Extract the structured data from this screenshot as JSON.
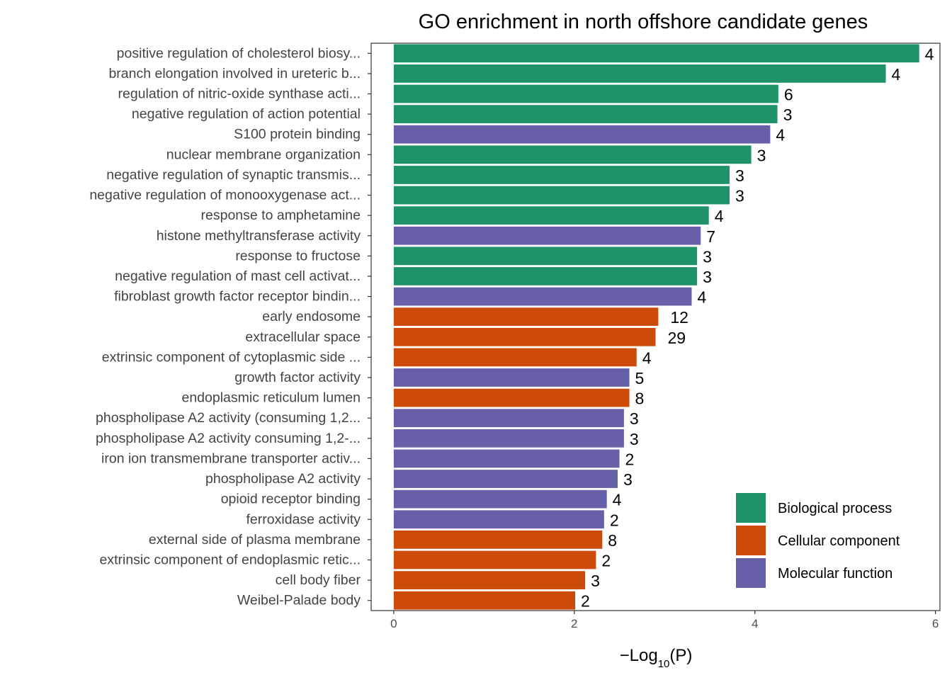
{
  "chart_data": {
    "type": "bar",
    "orientation": "horizontal",
    "title": "GO enrichment in north offshore candidate genes",
    "xlabel_prefix": "−Log",
    "xlabel_sub": "10",
    "xlabel_suffix": "(P)",
    "ylabel": "",
    "xlim": [
      -0.25,
      6.05
    ],
    "xticks": [
      0,
      2,
      4,
      6
    ],
    "grid": false,
    "legend": {
      "position": "bottom-right",
      "entries": [
        {
          "key": "BP",
          "label": "Biological process",
          "color": "#1b9e77"
        },
        {
          "key": "CC",
          "label": "Cellular component",
          "color": "#d95f02"
        },
        {
          "key": "MF",
          "label": "Molecular function",
          "color": "#7570b3"
        }
      ]
    },
    "colors": {
      "BP": "#1f9268",
      "CC": "#cc4a0a",
      "MF": "#6560a8"
    },
    "bars": [
      {
        "label": "positive regulation of cholesterol biosy...",
        "value": 5.82,
        "count": "4",
        "category": "BP"
      },
      {
        "label": "branch elongation involved in ureteric b...",
        "value": 5.45,
        "count": "4",
        "category": "BP"
      },
      {
        "label": "regulation of nitric-oxide synthase acti...",
        "value": 4.26,
        "count": "6",
        "category": "BP"
      },
      {
        "label": "negative regulation of action potential",
        "value": 4.25,
        "count": "3",
        "category": "BP"
      },
      {
        "label": "S100 protein binding",
        "value": 4.17,
        "count": "4",
        "category": "MF"
      },
      {
        "label": "nuclear membrane organization",
        "value": 3.96,
        "count": "3",
        "category": "BP"
      },
      {
        "label": "negative regulation of synaptic transmis...",
        "value": 3.72,
        "count": "3",
        "category": "BP"
      },
      {
        "label": "negative regulation of monooxygenase act...",
        "value": 3.72,
        "count": "3",
        "category": "BP"
      },
      {
        "label": "response to amphetamine",
        "value": 3.49,
        "count": "4",
        "category": "BP"
      },
      {
        "label": "histone methyltransferase activity",
        "value": 3.4,
        "count": "7",
        "category": "MF"
      },
      {
        "label": "response to fructose",
        "value": 3.36,
        "count": "3",
        "category": "BP"
      },
      {
        "label": "negative regulation of mast cell activat...",
        "value": 3.36,
        "count": "3",
        "category": "BP"
      },
      {
        "label": "fibroblast growth factor receptor bindin...",
        "value": 3.3,
        "count": "4",
        "category": "MF"
      },
      {
        "label": "early endosome",
        "value": 2.93,
        "count": "12",
        "category": "CC"
      },
      {
        "label": "extracellular space",
        "value": 2.9,
        "count": "29",
        "category": "CC"
      },
      {
        "label": "extrinsic component of cytoplasmic side ...",
        "value": 2.69,
        "count": "4",
        "category": "CC"
      },
      {
        "label": "growth factor activity",
        "value": 2.61,
        "count": "5",
        "category": "MF"
      },
      {
        "label": "endoplasmic reticulum lumen",
        "value": 2.61,
        "count": "8",
        "category": "CC"
      },
      {
        "label": "phospholipase A2 activity (consuming 1,2...",
        "value": 2.55,
        "count": "3",
        "category": "MF"
      },
      {
        "label": "phospholipase A2 activity consuming 1,2-...",
        "value": 2.55,
        "count": "3",
        "category": "MF"
      },
      {
        "label": "iron ion transmembrane transporter activ...",
        "value": 2.5,
        "count": "2",
        "category": "MF"
      },
      {
        "label": "phospholipase A2 activity",
        "value": 2.48,
        "count": "3",
        "category": "MF"
      },
      {
        "label": "opioid receptor binding",
        "value": 2.36,
        "count": "4",
        "category": "MF"
      },
      {
        "label": "ferroxidase activity",
        "value": 2.33,
        "count": "2",
        "category": "MF"
      },
      {
        "label": "external side of plasma membrane",
        "value": 2.31,
        "count": "8",
        "category": "CC"
      },
      {
        "label": "extrinsic component of endoplasmic retic...",
        "value": 2.24,
        "count": "2",
        "category": "CC"
      },
      {
        "label": "cell body fiber",
        "value": 2.12,
        "count": "3",
        "category": "CC"
      },
      {
        "label": "Weibel-Palade body",
        "value": 2.01,
        "count": "2",
        "category": "CC"
      }
    ]
  }
}
